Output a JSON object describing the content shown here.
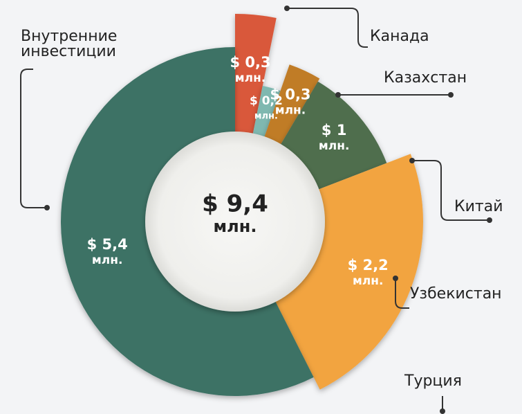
{
  "chart_data": {
    "type": "pie",
    "categories": [
      "Канада",
      "Казахстан",
      "Китай",
      "Узбекистан",
      "Турция",
      "Внутренние инвестиции"
    ],
    "values": [
      0.3,
      0.2,
      0.3,
      1,
      2.2,
      5.4
    ],
    "value_labels": [
      "$ 0,3",
      "$ 0,2",
      "$ 0,3",
      "$ 1",
      "$ 2,2",
      "$ 5,4"
    ],
    "unit_label": "млн.",
    "colors": [
      "#d9583a",
      "#7fb8b0",
      "#c07b28",
      "#4f6e4d",
      "#f2a440",
      "#3d7265"
    ],
    "total": 9.4,
    "total_label": "$ 9,4"
  }
}
